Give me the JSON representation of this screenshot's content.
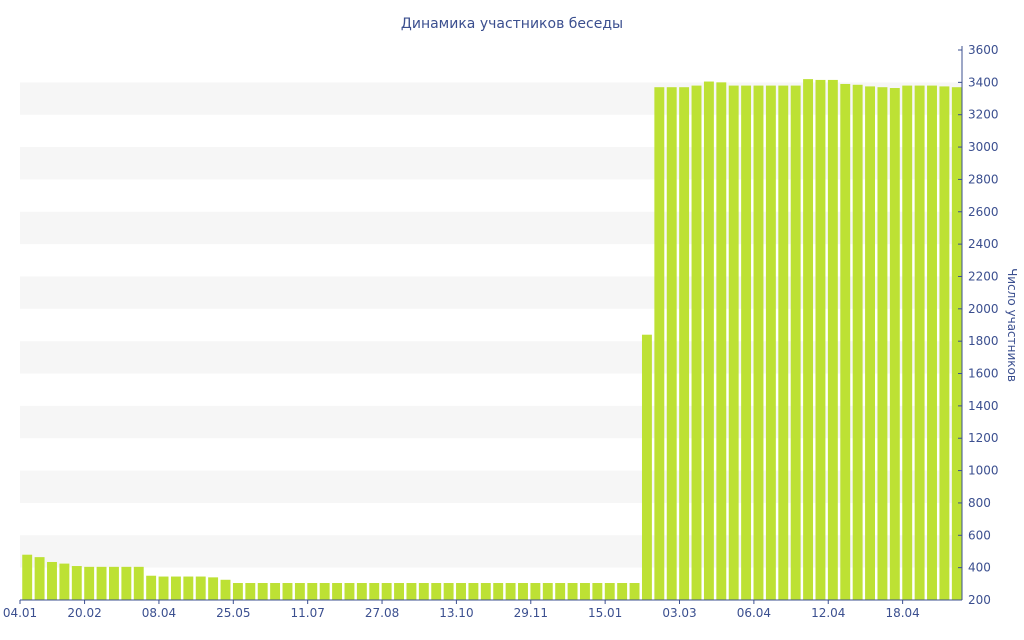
{
  "chart_data": {
    "type": "bar",
    "title": "Динамика участников беседы",
    "xlabel": "",
    "ylabel": "Число участников",
    "ylim": [
      200,
      3600
    ],
    "y_axis_position": "right",
    "y_ticks": [
      200,
      400,
      600,
      800,
      1000,
      1200,
      1400,
      1600,
      1800,
      2000,
      2200,
      2400,
      2600,
      2800,
      3000,
      3200,
      3400,
      3600
    ],
    "grid": "alternating horizontal bands",
    "x_tick_labels": [
      "04.01",
      "20.02",
      "08.04",
      "25.05",
      "11.07",
      "27.08",
      "13.10",
      "29.11",
      "15.01",
      "03.03",
      "06.04",
      "12.04",
      "18.04"
    ],
    "x_tick_positions": [
      0,
      6,
      12,
      18,
      24,
      30,
      36,
      42,
      48,
      54,
      60,
      66,
      72
    ],
    "colors": {
      "bar": "#bde134",
      "text": "#3b4f8f",
      "axis": "#3b4f8f",
      "band": "#f6f6f6"
    },
    "values": [
      480,
      465,
      435,
      425,
      410,
      405,
      405,
      405,
      405,
      405,
      350,
      345,
      345,
      345,
      345,
      340,
      325,
      305,
      305,
      305,
      305,
      305,
      305,
      305,
      305,
      305,
      305,
      305,
      305,
      305,
      305,
      305,
      305,
      305,
      305,
      305,
      305,
      305,
      305,
      305,
      305,
      305,
      305,
      305,
      305,
      305,
      305,
      305,
      305,
      305,
      1840,
      3370,
      3370,
      3370,
      3380,
      3405,
      3400,
      3380,
      3380,
      3380,
      3380,
      3380,
      3380,
      3420,
      3415,
      3415,
      3390,
      3385,
      3375,
      3370,
      3365,
      3380,
      3380,
      3380,
      3375,
      3370
    ]
  }
}
